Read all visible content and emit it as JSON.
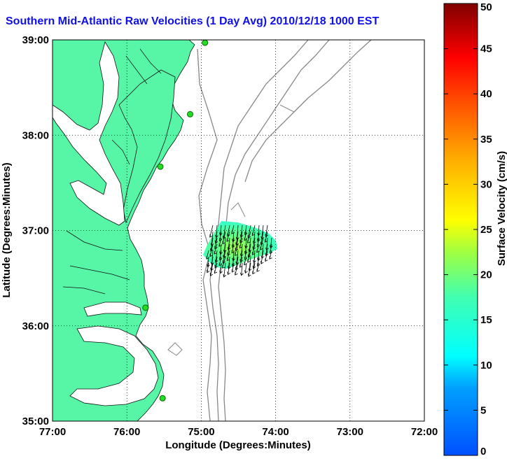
{
  "title": "Southern Mid-Atlantic Raw Velocities (1 Day Avg) 2010/12/18 1000 EST",
  "map": {
    "xlabel": "Longitude (Degrees:Minutes)",
    "ylabel": "Latitude (Degrees:Minutes)",
    "x_ticks": [
      "77:00",
      "76:00",
      "75:00",
      "74:00",
      "73:00",
      "72:00"
    ],
    "y_ticks": [
      "39:00",
      "38:00",
      "37:00",
      "36:00",
      "35:00"
    ],
    "lon_range": [
      -77,
      -72
    ],
    "lat_range": [
      35,
      39
    ],
    "grid": "dotted",
    "land_color": "#57f5a6",
    "contour_color": "#888888",
    "station_color": "#22dd22",
    "stations": [
      {
        "lon": -74.95,
        "lat": 38.97
      },
      {
        "lon": -75.15,
        "lat": 38.22
      },
      {
        "lon": -75.55,
        "lat": 37.67
      },
      {
        "lon": -75.75,
        "lat": 36.19
      },
      {
        "lon": -75.52,
        "lat": 35.24
      }
    ]
  },
  "colorbar": {
    "label": "Surface Velocity (cm/s)",
    "ticks": [
      "0",
      "5",
      "10",
      "15",
      "20",
      "25",
      "30",
      "35",
      "40",
      "45",
      "50"
    ],
    "range": [
      0,
      50
    ]
  }
}
